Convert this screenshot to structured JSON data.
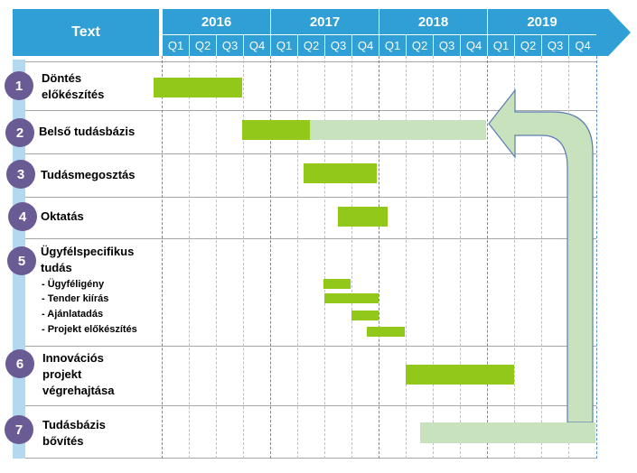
{
  "header": {
    "text_label": "Text",
    "years": [
      "2016",
      "2017",
      "2018",
      "2019"
    ],
    "quarters": [
      "Q1",
      "Q2",
      "Q3",
      "Q4",
      "Q1",
      "Q2",
      "Q3",
      "Q4",
      "Q1",
      "Q2",
      "Q3",
      "Q4",
      "Q1",
      "Q2",
      "Q3",
      "Q4"
    ]
  },
  "rows": [
    {
      "number": "1",
      "label_lines": [
        "Döntés",
        "előkészítés"
      ]
    },
    {
      "number": "2",
      "label_lines": [
        "Belső tudásbázis"
      ]
    },
    {
      "number": "3",
      "label_lines": [
        "Tudásmegosztás"
      ]
    },
    {
      "number": "4",
      "label_lines": [
        "Oktatás"
      ]
    },
    {
      "number": "5",
      "label_lines": [
        "Ügyfélspecifikus",
        "tudás"
      ],
      "sub_items": [
        "-    Ügyféligény",
        "-    Tender kiírás",
        "-    Ajánlatadás",
        "-    Projekt előkészítés"
      ]
    },
    {
      "number": "6",
      "label_lines": [
        "Innovációs",
        "projekt",
        "végrehajtása"
      ]
    },
    {
      "number": "7",
      "label_lines": [
        "Tudásbázis",
        "bővítés"
      ]
    }
  ],
  "colors": {
    "header_blue": "#2f9fd6",
    "circle_purple": "#6b5b95",
    "bar_green": "#92c81a",
    "bar_light_green": "#c8e2bd",
    "spine_blue": "#b3d9f0"
  }
}
